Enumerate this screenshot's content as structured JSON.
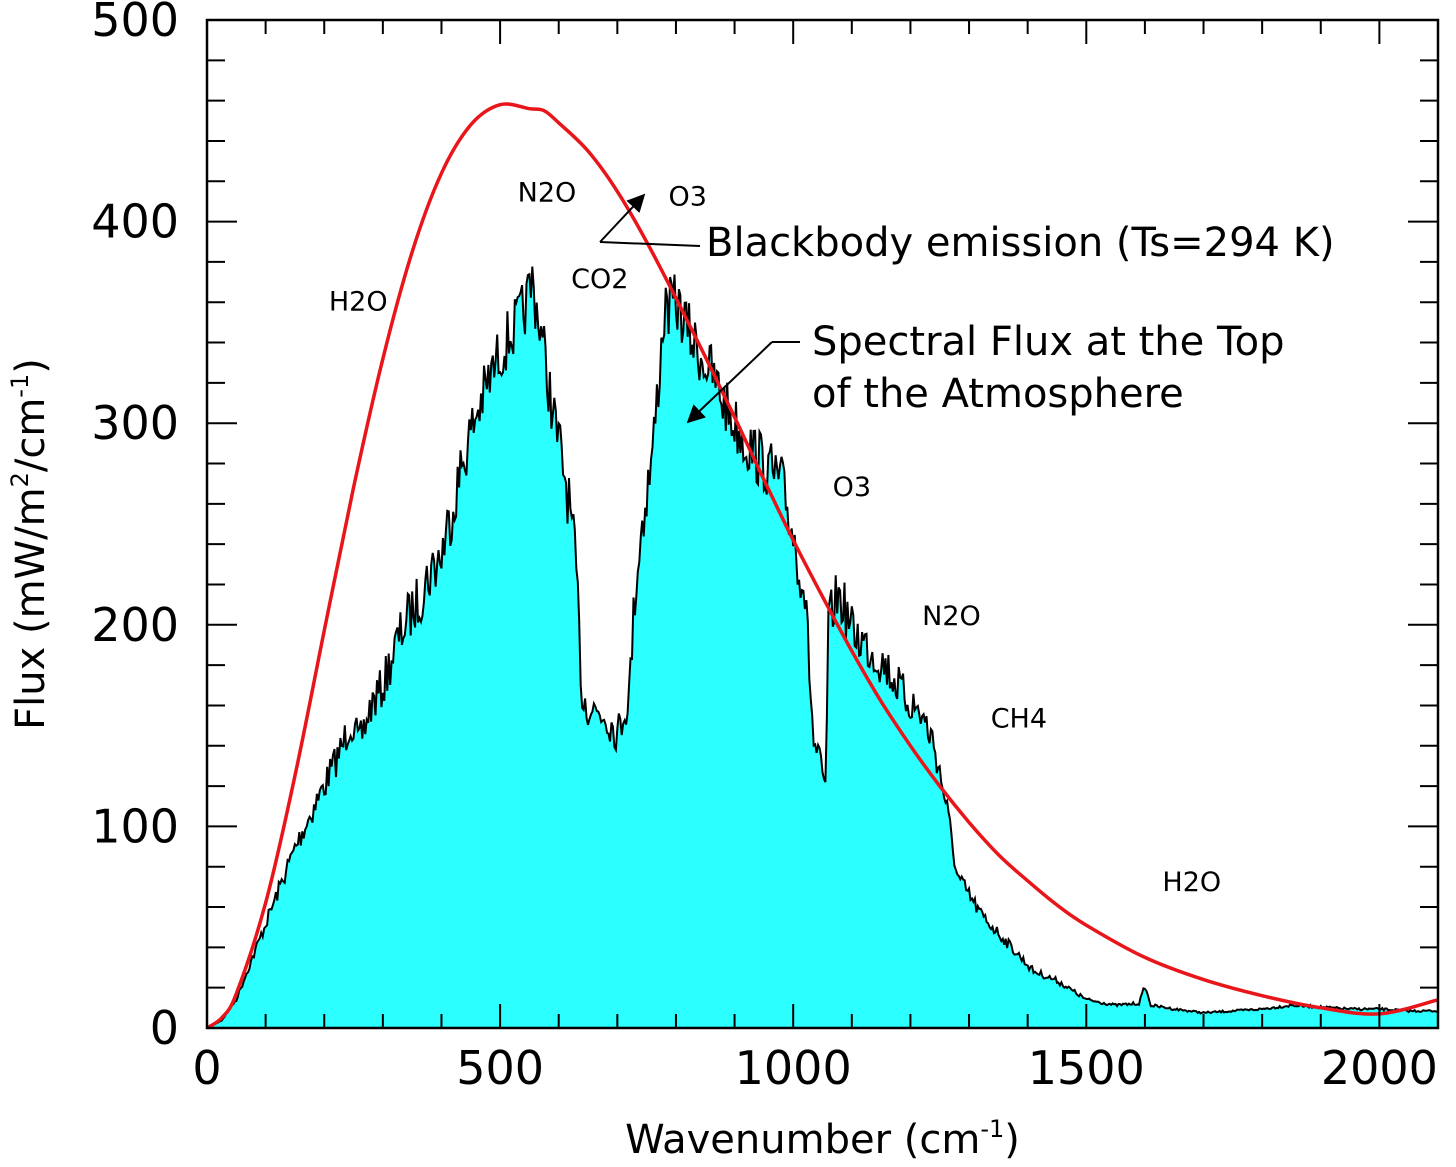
{
  "chart_data": {
    "type": "area",
    "title": "",
    "xlabel": "Wavenumber (cm",
    "xlabel_sup": "-1",
    "xlabel_close": ")",
    "ylabel_parts": [
      "Flux (mW/m",
      "2",
      "/cm",
      "-1",
      ")"
    ],
    "xlim": [
      0,
      2100
    ],
    "ylim": [
      0,
      500
    ],
    "x_ticks": [
      0,
      500,
      1000,
      1500,
      2000
    ],
    "y_ticks": [
      0,
      100,
      200,
      300,
      400,
      500
    ],
    "grid": false,
    "colors": {
      "blackbody": "#e8161b",
      "fill": "#2bffff",
      "flux_line": "#000000"
    },
    "series": [
      {
        "name": "Blackbody emission (Ts=294 K)",
        "type": "line",
        "temperature_K": 294,
        "x": [
          0,
          25,
          50,
          100,
          150,
          200,
          250,
          300,
          350,
          400,
          450,
          500,
          550,
          575,
          600,
          650,
          700,
          750,
          800,
          850,
          900,
          950,
          1000,
          1050,
          1100,
          1150,
          1200,
          1250,
          1300,
          1350,
          1400,
          1450,
          1500,
          1600,
          1700,
          1800,
          1900,
          2000,
          2100
        ],
        "y": [
          0,
          5,
          17,
          62,
          125,
          197,
          268,
          332,
          385,
          424,
          448,
          458,
          456,
          455,
          449,
          435,
          415,
          390,
          362,
          333,
          303,
          272,
          242,
          214,
          187,
          162,
          140,
          120,
          102,
          86,
          73,
          61,
          51,
          35,
          24,
          16,
          10,
          7,
          14
        ]
      },
      {
        "name": "Spectral Flux at the Top of the Atmosphere",
        "type": "area",
        "x": [
          0,
          25,
          50,
          100,
          150,
          200,
          230,
          245,
          260,
          280,
          300,
          320,
          340,
          360,
          380,
          400,
          420,
          440,
          460,
          480,
          500,
          520,
          540,
          555,
          570,
          590,
          610,
          620,
          630,
          640,
          650,
          660,
          680,
          700,
          720,
          730,
          740,
          760,
          780,
          800,
          830,
          860,
          890,
          920,
          950,
          980,
          1000,
          1020,
          1035,
          1045,
          1055,
          1060,
          1070,
          1080,
          1100,
          1130,
          1160,
          1190,
          1220,
          1240,
          1260,
          1280,
          1300,
          1320,
          1350,
          1380,
          1410,
          1450,
          1500,
          1550,
          1590,
          1600,
          1610,
          1650,
          1700,
          1750,
          1800,
          1850,
          1900,
          1950,
          2000,
          2050,
          2100
        ],
        "y": [
          0,
          4,
          15,
          55,
          95,
          128,
          148,
          162,
          150,
          170,
          180,
          200,
          215,
          225,
          240,
          250,
          275,
          300,
          320,
          335,
          350,
          360,
          370,
          385,
          360,
          320,
          290,
          270,
          240,
          175,
          170,
          168,
          165,
          155,
          175,
          230,
          260,
          300,
          370,
          375,
          355,
          340,
          320,
          305,
          295,
          285,
          260,
          230,
          150,
          140,
          125,
          210,
          225,
          228,
          210,
          200,
          190,
          175,
          165,
          150,
          120,
          80,
          70,
          60,
          50,
          40,
          30,
          25,
          15,
          12,
          13,
          22,
          12,
          10,
          8,
          9,
          10,
          12,
          11,
          10,
          10,
          9,
          9
        ]
      }
    ],
    "gas_labels": [
      {
        "text": "H2O",
        "x": 258,
        "y": 356
      },
      {
        "text": "N2O",
        "x": 580,
        "y": 410
      },
      {
        "text": "CO2",
        "x": 670,
        "y": 367
      },
      {
        "text": "O3",
        "x": 820,
        "y": 408
      },
      {
        "text": "O3",
        "x": 1100,
        "y": 264
      },
      {
        "text": "N2O",
        "x": 1270,
        "y": 200
      },
      {
        "text": "CH4",
        "x": 1385,
        "y": 149
      },
      {
        "text": "H2O",
        "x": 1680,
        "y": 68
      }
    ],
    "annotations": {
      "blackbody_label": "Blackbody emission (Ts=294 K)",
      "flux_label_line1": "Spectral Flux at the Top",
      "flux_label_line2": "of the Atmosphere"
    }
  }
}
